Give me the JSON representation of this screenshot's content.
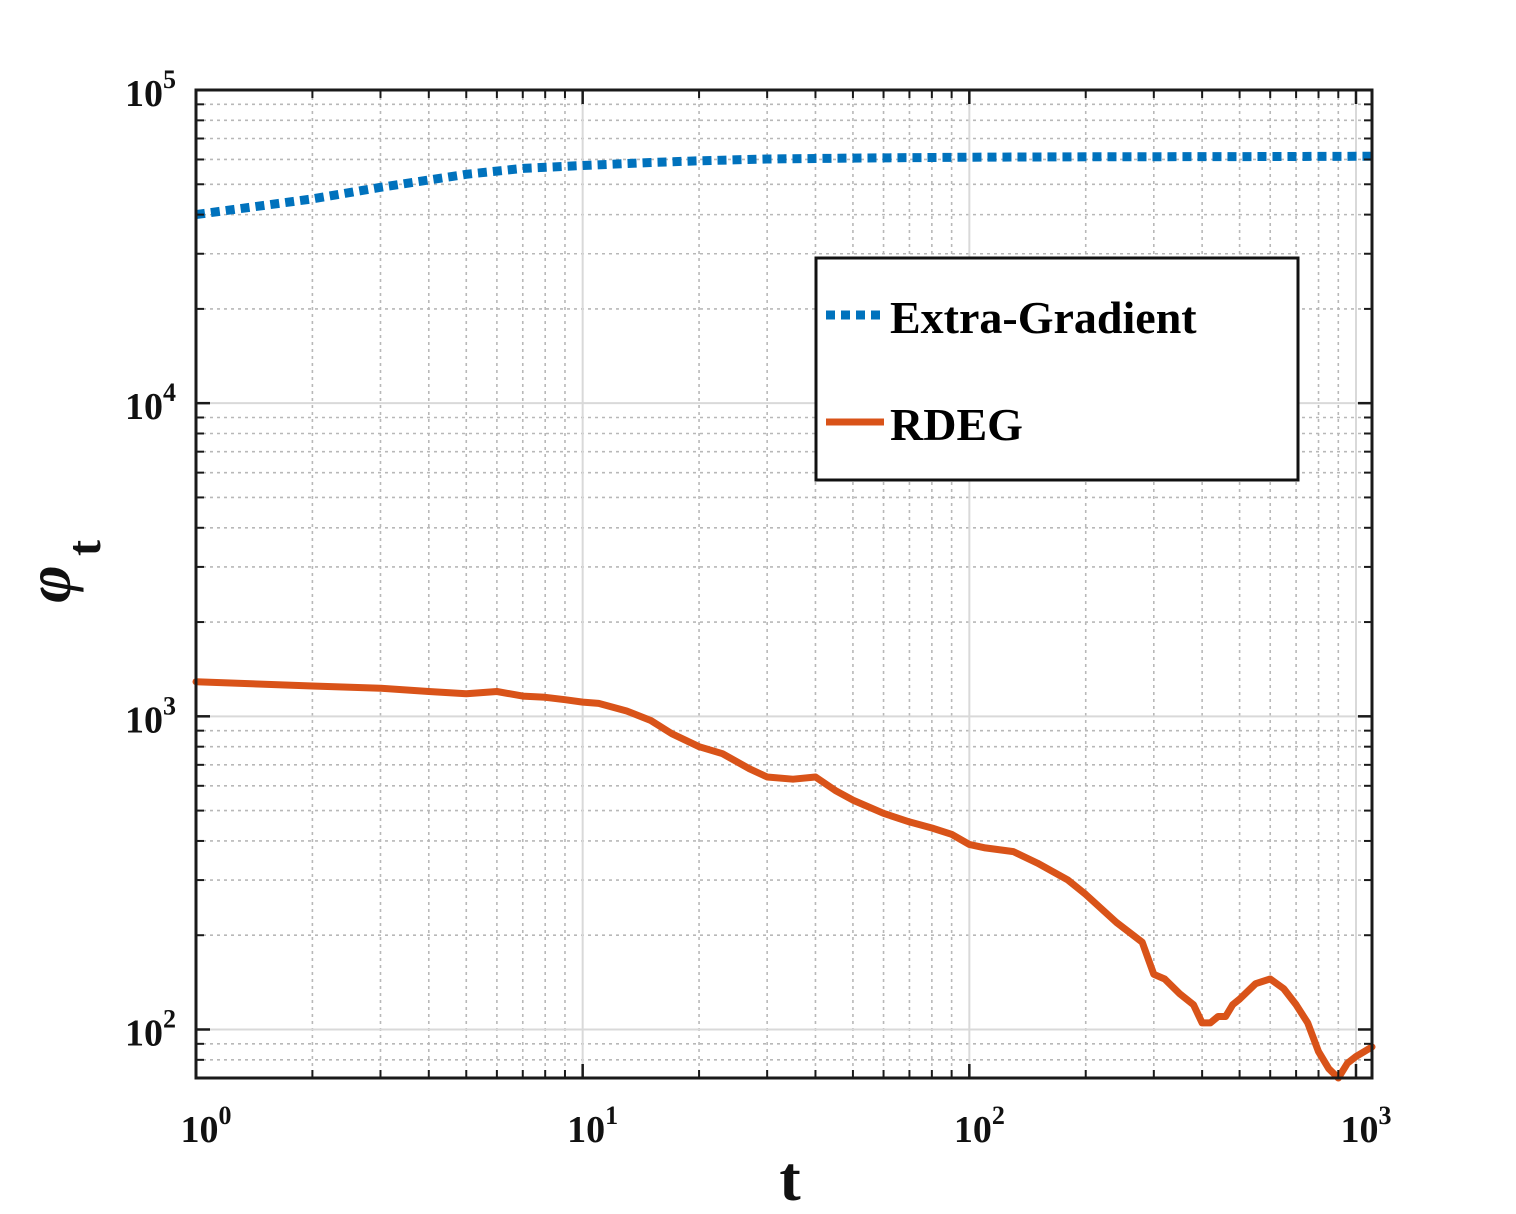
{
  "chart_data": {
    "type": "line",
    "xscale": "log",
    "yscale": "log",
    "xlim": [
      1,
      1100
    ],
    "ylim": [
      70,
      100000
    ],
    "grid": true,
    "minor_grid": true,
    "xlabel": "t",
    "ylabel": "φ",
    "ylabel_sub": "t",
    "x_ticks": [
      {
        "base": "10",
        "exp": "0",
        "value": 1
      },
      {
        "base": "10",
        "exp": "1",
        "value": 10
      },
      {
        "base": "10",
        "exp": "2",
        "value": 100
      },
      {
        "base": "10",
        "exp": "3",
        "value": 1000
      }
    ],
    "y_ticks": [
      {
        "base": "10",
        "exp": "2",
        "value": 100
      },
      {
        "base": "10",
        "exp": "3",
        "value": 1000
      },
      {
        "base": "10",
        "exp": "4",
        "value": 10000
      },
      {
        "base": "10",
        "exp": "5",
        "value": 100000
      }
    ],
    "legend_position": "upper-right",
    "series": [
      {
        "name": "Extra-Gradient",
        "color": "#0072BD",
        "style": "dotted",
        "x": [
          1,
          2,
          3,
          5,
          7,
          10,
          15,
          20,
          30,
          50,
          100,
          200,
          500,
          1000,
          1100
        ],
        "y": [
          40000,
          44900,
          48900,
          53800,
          56200,
          57400,
          58700,
          59400,
          60200,
          60600,
          61000,
          61200,
          61300,
          61400,
          61400
        ]
      },
      {
        "name": "RDEG",
        "color": "#D95319",
        "style": "solid",
        "x": [
          1,
          2,
          3,
          4,
          5,
          6,
          7,
          8,
          9,
          10,
          11,
          13,
          15,
          17,
          20,
          23,
          27,
          30,
          35,
          40,
          45,
          50,
          60,
          70,
          80,
          90,
          100,
          110,
          130,
          150,
          180,
          200,
          240,
          280,
          300,
          320,
          350,
          380,
          400,
          420,
          440,
          460,
          480,
          500,
          550,
          600,
          650,
          700,
          750,
          800,
          850,
          900,
          950,
          1000,
          1050,
          1100
        ],
        "y": [
          1290,
          1250,
          1230,
          1200,
          1180,
          1200,
          1160,
          1150,
          1130,
          1110,
          1100,
          1040,
          970,
          880,
          800,
          760,
          680,
          640,
          630,
          640,
          580,
          540,
          490,
          460,
          440,
          420,
          390,
          380,
          370,
          340,
          300,
          270,
          220,
          190,
          150,
          145,
          130,
          120,
          105,
          105,
          110,
          110,
          120,
          125,
          140,
          145,
          135,
          120,
          105,
          85,
          75,
          70,
          78,
          82,
          85,
          88
        ]
      }
    ]
  }
}
